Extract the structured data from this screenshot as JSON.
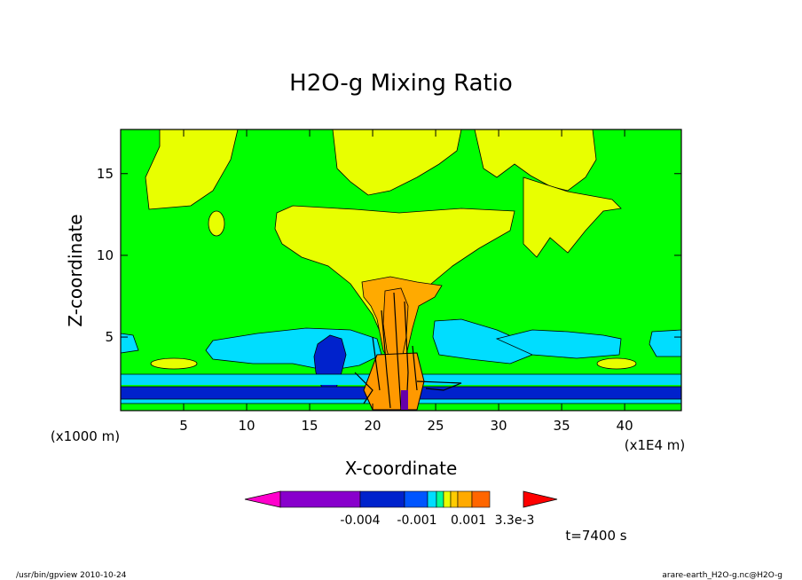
{
  "chart_data": {
    "type": "contour",
    "title": "H2O-g Mixing Ratio",
    "xlabel": "X-coordinate",
    "ylabel": "Z-coordinate",
    "x_unit": "(x1E4 m)",
    "y_unit": "(x1000 m)",
    "xlim": [
      0,
      44.5
    ],
    "ylim": [
      0.5,
      17.7
    ],
    "x_ticks": [
      "5",
      "10",
      "15",
      "20",
      "25",
      "30",
      "35",
      "40"
    ],
    "y_ticks": [
      "5",
      "10",
      "15"
    ],
    "colorbar": {
      "colors": [
        "#ff00cc",
        "#8800cc",
        "#0022cc",
        "#0055ff",
        "#00ddff",
        "#00ff99",
        "#e8ff00",
        "#ffcc00",
        "#ffaa00",
        "#ff6600",
        "#ff0000"
      ],
      "labels": [
        "-0.004",
        "-0.001",
        "0.001",
        "3.3e-3"
      ]
    },
    "time_label": "t=7400 s",
    "colors": {
      "background": "#00ff00",
      "yellow": "#e8ff00",
      "cyan": "#00ddff",
      "blue": "#0022cc",
      "orange": "#ffaa00",
      "darkorange": "#ff9900"
    }
  },
  "footer": {
    "left": "/usr/bin/gpview  2010-10-24",
    "right": "arare-earth_H2O-g.nc@H2O-g"
  }
}
